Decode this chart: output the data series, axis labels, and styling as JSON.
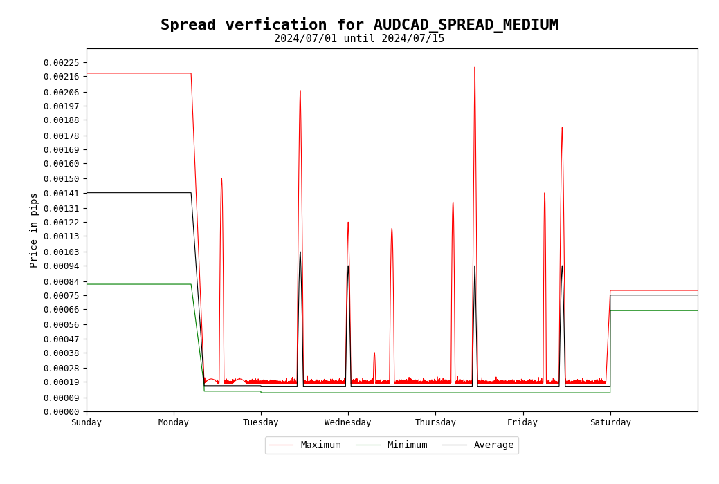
{
  "title": "Spread verfication for AUDCAD_SPREAD_MEDIUM",
  "subtitle": "2024/07/01 until 2024/07/15",
  "ylabel": "Price in pips",
  "yticks": [
    0.0,
    9e-05,
    0.00019,
    0.00028,
    0.00038,
    0.00047,
    0.00056,
    0.00066,
    0.00075,
    0.00084,
    0.00094,
    0.00103,
    0.00113,
    0.00122,
    0.00131,
    0.00141,
    0.0015,
    0.0016,
    0.00169,
    0.00178,
    0.00188,
    0.00197,
    0.00206,
    0.00216,
    0.00225
  ],
  "ylim": [
    0.0,
    0.00234
  ],
  "xticklabels": [
    "Sunday",
    "Monday",
    "Tuesday",
    "Wednesday",
    "Thursday",
    "Friday",
    "Saturday"
  ],
  "n_points": 10080,
  "colors": {
    "max": "#ff0000",
    "min": "#008000",
    "avg": "#000000"
  },
  "legend_labels": [
    "Maximum",
    "Minimum",
    "Average"
  ],
  "title_fontsize": 16,
  "subtitle_fontsize": 11,
  "label_fontsize": 10,
  "tick_fontsize": 9
}
